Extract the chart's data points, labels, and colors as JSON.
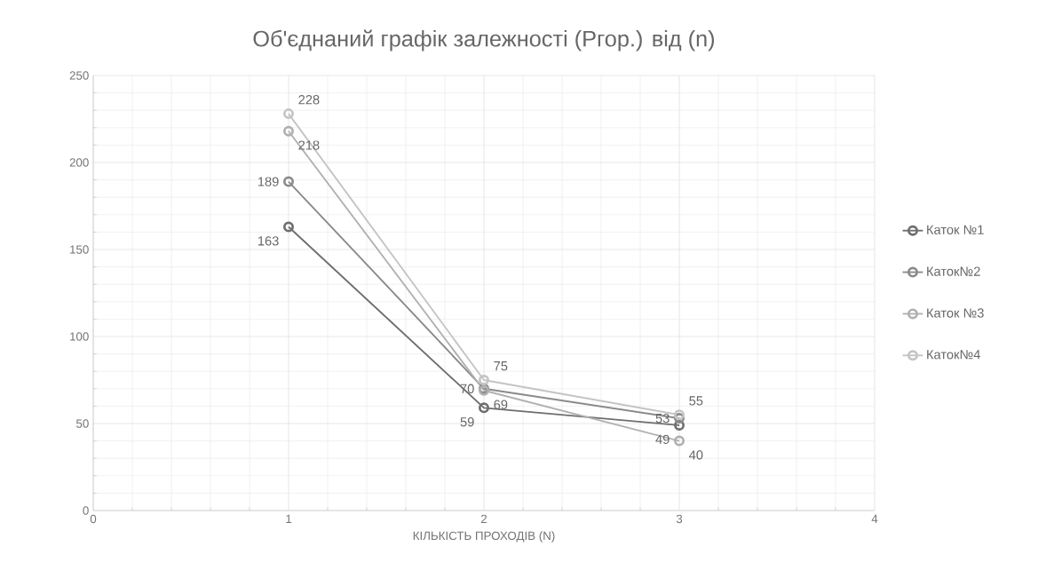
{
  "chart_data": {
    "type": "line",
    "title": "Об'єднаний графік залежності (Pгор.) від (n)",
    "xlabel": "КІЛЬКІСТЬ ПРОХОДІВ (N)",
    "x": [
      1,
      2,
      3
    ],
    "series": [
      {
        "name": "Каток №1",
        "color": "#6e6e6e",
        "values": [
          163,
          59,
          49
        ]
      },
      {
        "name": "Каток№2",
        "color": "#8a8a8a",
        "values": [
          189,
          70,
          53
        ]
      },
      {
        "name": "Каток №3",
        "color": "#b0b0b0",
        "values": [
          218,
          69,
          40
        ]
      },
      {
        "name": "Каток№4",
        "color": "#c4c4c4",
        "values": [
          228,
          75,
          55
        ]
      }
    ],
    "xlim": [
      0,
      4
    ],
    "ylim": [
      0,
      250
    ],
    "xticks": [
      0,
      1,
      2,
      3,
      4
    ],
    "yticks": [
      0,
      50,
      100,
      150,
      200,
      250
    ],
    "grid": true,
    "legend": "right",
    "marker": "circle",
    "line_style": "solid",
    "data_labels": true
  }
}
